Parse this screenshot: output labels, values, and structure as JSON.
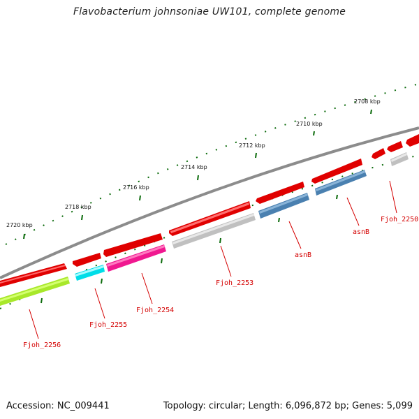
{
  "title": "Flavobacterium johnsoniae UW101, complete genome",
  "footer": {
    "accession": "Accession: NC_009441",
    "summary": "Topology: circular; Length: 6,096,872 bp; Genes: 5,099"
  },
  "scale_labels": [
    "2708 kbp",
    "2710 kbp",
    "2712 kbp",
    "2714 kbp",
    "2716 kbp",
    "2718 kbp",
    "2720 kbp"
  ],
  "gene_labels": [
    "Fjoh_2250",
    "asnB",
    "asnB",
    "Fjoh_2253",
    "Fjoh_2254",
    "Fjoh_2255",
    "Fjoh_2256"
  ],
  "colors": {
    "backbone": "#8a8a8a",
    "gene_strand": "#ff0000",
    "Fjoh_2250": "#c8c8c8",
    "asnB": "#4a82b4",
    "Fjoh_2253": "#c8c8c8",
    "Fjoh_2254": "#ff1493",
    "Fjoh_2255": "#00e5ff",
    "Fjoh_2256": "#adff2f",
    "tick": "#006400",
    "label": "#d40000"
  }
}
